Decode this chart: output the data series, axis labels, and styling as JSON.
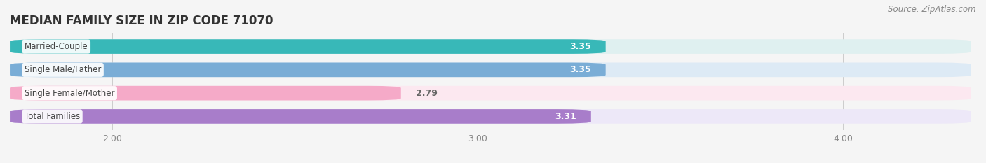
{
  "title": "MEDIAN FAMILY SIZE IN ZIP CODE 71070",
  "source_text": "Source: ZipAtlas.com",
  "categories": [
    "Married-Couple",
    "Single Male/Father",
    "Single Female/Mother",
    "Total Families"
  ],
  "values": [
    3.35,
    3.35,
    2.79,
    3.31
  ],
  "bar_colors": [
    "#38b8b8",
    "#7aadd6",
    "#f5aac8",
    "#a87dca"
  ],
  "bar_bg_colors": [
    "#dff0f0",
    "#ddeaf5",
    "#fce8f0",
    "#ede8f8"
  ],
  "value_colors": [
    "#ffffff",
    "#ffffff",
    "#888888",
    "#ffffff"
  ],
  "value_ha": [
    "left",
    "left",
    "left",
    "left"
  ],
  "xlim_start": 1.72,
  "xlim_end": 4.35,
  "xticks": [
    2.0,
    3.0,
    4.0
  ],
  "xtick_labels": [
    "2.00",
    "3.00",
    "4.00"
  ],
  "bar_height": 0.62,
  "bar_gap": 1.0,
  "figsize": [
    14.06,
    2.33
  ],
  "dpi": 100,
  "title_fontsize": 12,
  "label_fontsize": 8.5,
  "tick_fontsize": 9,
  "source_fontsize": 8.5,
  "value_fontsize": 9
}
